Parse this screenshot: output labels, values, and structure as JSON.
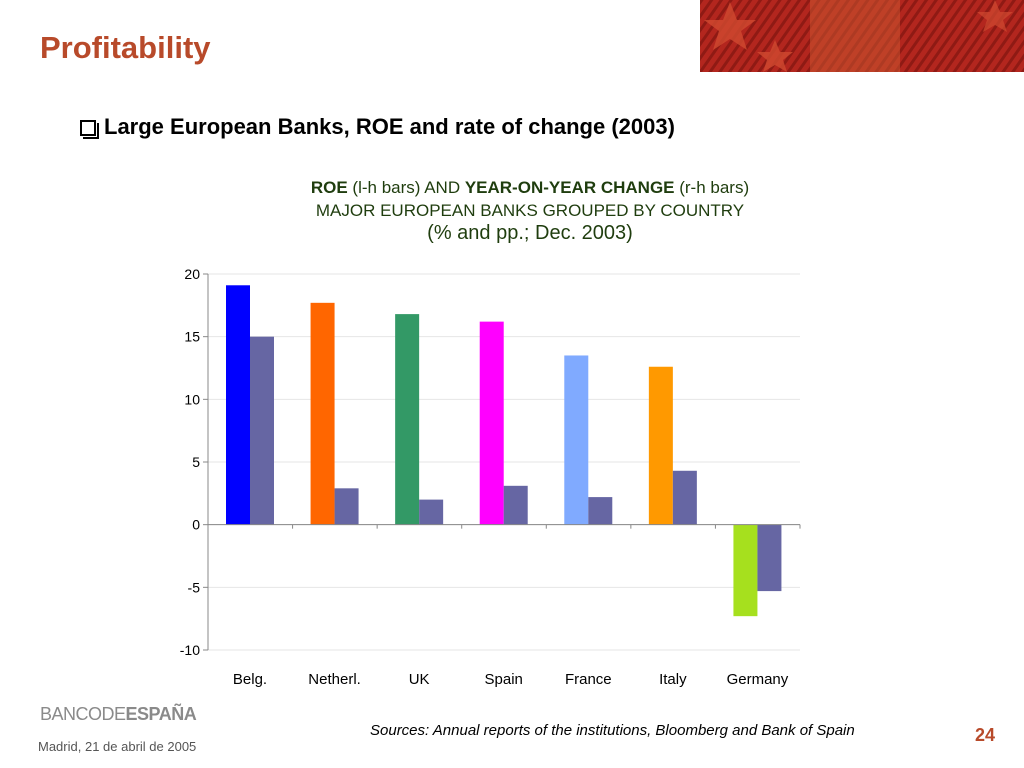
{
  "slide": {
    "title": "Profitability",
    "bullet": "Large European Banks, ROE and rate of change (2003)",
    "footer_logo_a": "BANCO",
    "footer_logo_b": "DE",
    "footer_logo_c": "ESPAÑA",
    "footer_date": "Madrid,  21 de abril de 2005",
    "sources": "Sources: Annual reports of the institutions, Bloomberg and Bank of Spain",
    "page_number": "24"
  },
  "chart_head": {
    "line1_a": "ROE",
    "line1_b": " (l-h bars) AND ",
    "line1_c": "YEAR-ON-YEAR CHANGE",
    "line1_d": " (r-h bars)",
    "line2": "MAJOR EUROPEAN BANKS GROUPED BY COUNTRY",
    "line3": "(% and pp.; Dec. 2003)"
  },
  "chart_data": {
    "type": "bar",
    "categories": [
      "Belg.",
      "Netherl.",
      "UK",
      "Spain",
      "France",
      "Italy",
      "Germany"
    ],
    "series": [
      {
        "values": [
          19.1,
          17.7,
          16.8,
          16.2,
          13.5,
          12.6,
          -7.3
        ],
        "colors": [
          "#0000ff",
          "#ff6600",
          "#339966",
          "#ff00ff",
          "#80aaff",
          "#ff9900",
          "#a6e01e"
        ]
      },
      {
        "values": [
          15.0,
          2.9,
          2.0,
          3.1,
          2.2,
          4.3,
          -5.3
        ],
        "color": "#6666a3"
      }
    ],
    "ylim": [
      -10,
      20
    ],
    "yticks": [
      20,
      15,
      10,
      5,
      0,
      -5,
      -10
    ],
    "grid": true
  }
}
